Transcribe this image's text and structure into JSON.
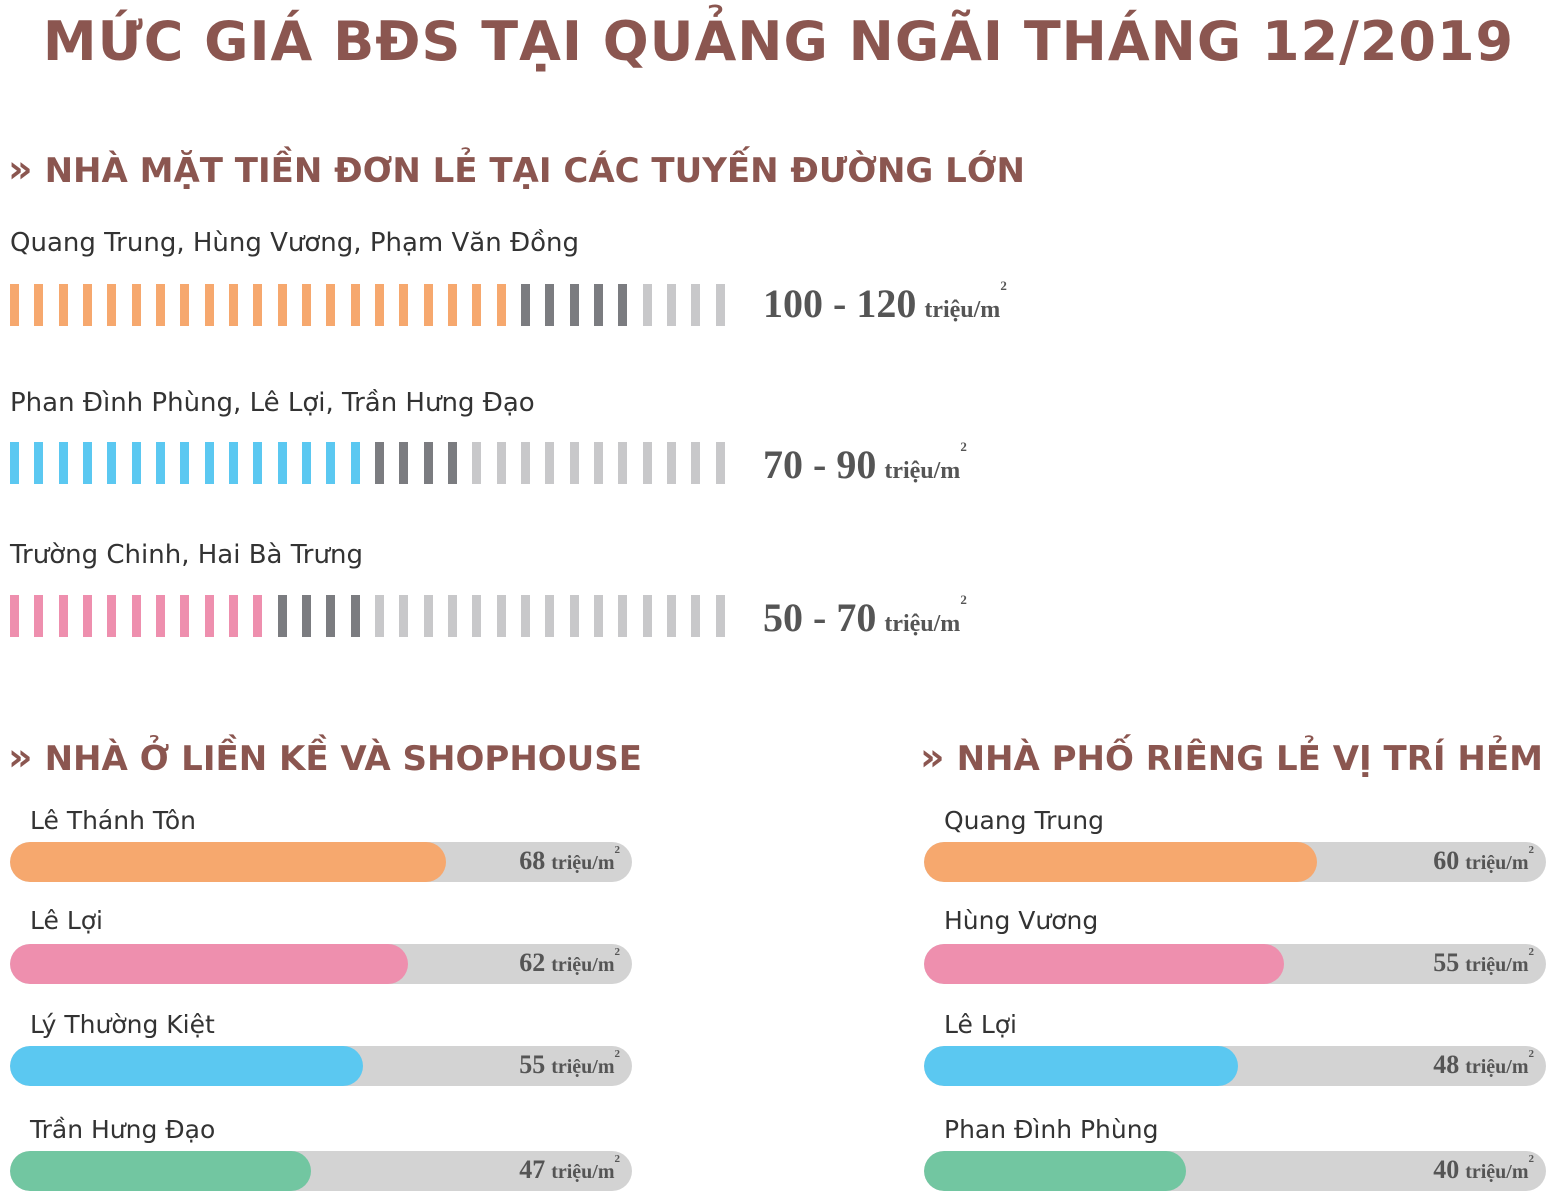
{
  "title": "MỨC GIÁ BĐS TẠI QUẢNG NGÃI THÁNG 12/2019",
  "chevron_glyph": "»",
  "unit_text": "triệu/m",
  "unit_sup": "2",
  "colors": {
    "title": "#8b5650",
    "orange": "#f6a86e",
    "blue": "#5bc8f1",
    "pink": "#ee8fae",
    "green": "#72c6a1",
    "dark_gray": "#7b7c80",
    "light_gray": "#c8c8ca",
    "track": "#d3d3d3"
  },
  "chart_data": [
    {
      "type": "bar",
      "section": "NHÀ MẶT TIỀN ĐƠN LẺ TẠI CÁC TUYẾN ĐƯỜNG LỚN",
      "categories": [
        "Quang Trung, Hùng Vương, Phạm Văn Đồng",
        "Phan Đình Phùng, Lê Lợi, Trần Hưng Đạo",
        "Trường Chinh, Hai Bà Trưng"
      ],
      "ranges": [
        {
          "min": 100,
          "max": 120,
          "label": "100 - 120",
          "color": "#f6a86e"
        },
        {
          "min": 70,
          "max": 90,
          "label": "70 - 90",
          "color": "#5bc8f1"
        },
        {
          "min": 50,
          "max": 70,
          "label": "50 - 70",
          "color": "#ee8fae"
        }
      ],
      "scale_max": 140,
      "unit": "triệu/m²"
    },
    {
      "type": "bar",
      "section": "NHÀ Ở LIỀN KỀ VÀ SHOPHOUSE",
      "categories": [
        "Lê Thánh Tôn",
        "Lê Lợi",
        "Lý Thường Kiệt",
        "Trần Hưng Đạo"
      ],
      "values": [
        68,
        62,
        55,
        47
      ],
      "colors": [
        "#f6a86e",
        "#ee8fae",
        "#5bc8f1",
        "#72c6a1"
      ],
      "scale_max": 97,
      "unit": "triệu/m²"
    },
    {
      "type": "bar",
      "section": "NHÀ PHỐ RIÊNG LẺ VỊ TRÍ HẺM",
      "categories": [
        "Quang Trung",
        "Hùng Vương",
        "Lê Lợi",
        "Phan Đình Phùng"
      ],
      "values": [
        60,
        55,
        48,
        40
      ],
      "colors": [
        "#f6a86e",
        "#ee8fae",
        "#5bc8f1",
        "#72c6a1"
      ],
      "scale_max": 95,
      "unit": "triệu/m²"
    }
  ]
}
